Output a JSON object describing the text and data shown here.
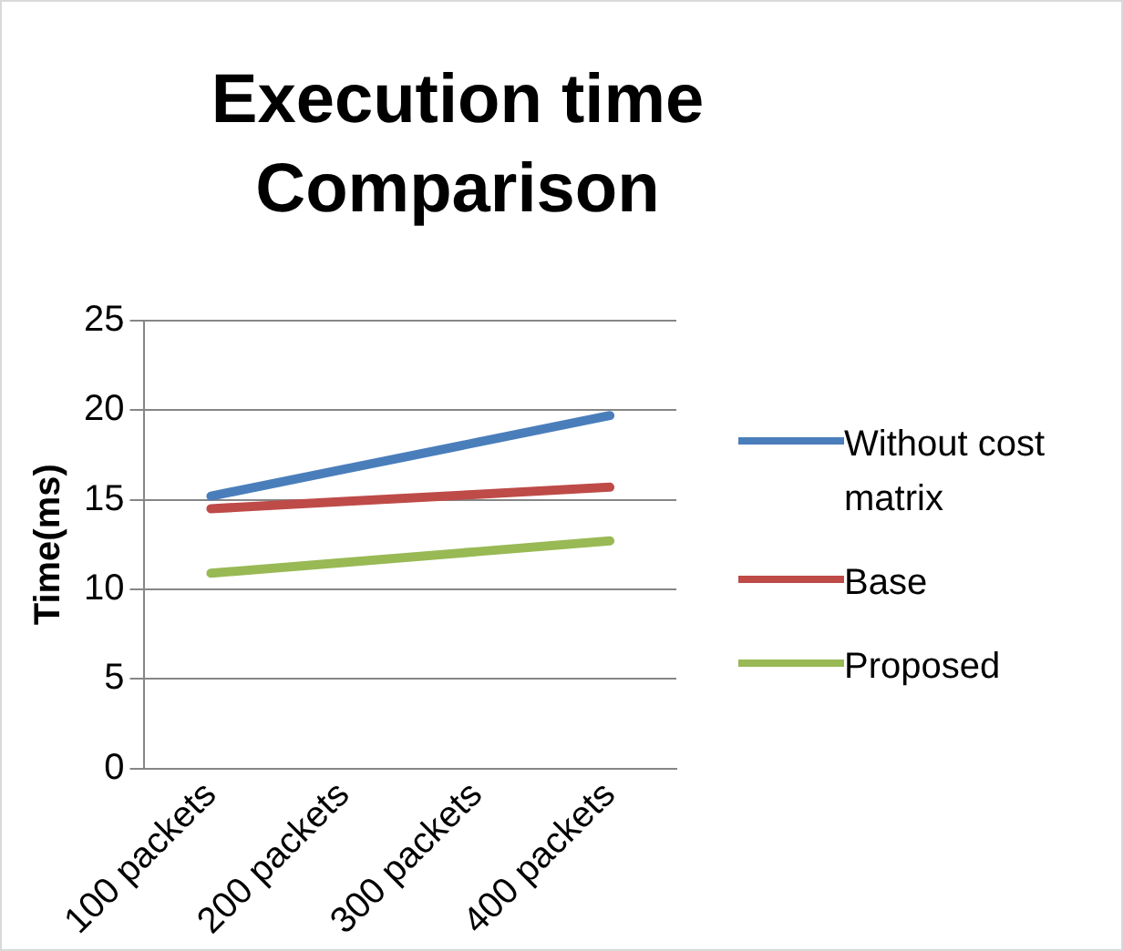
{
  "chart_data": {
    "type": "line",
    "title": "Execution time Comparison",
    "ylabel": "Time(ms)",
    "categories": [
      "100 packets",
      "200 packets",
      "300 packets",
      "400 packets"
    ],
    "series": [
      {
        "name": "Without cost matrix",
        "color": "#4a7ebb",
        "values": [
          15.2,
          16.7,
          18.2,
          19.7
        ]
      },
      {
        "name": "Base",
        "color": "#be4b48",
        "values": [
          14.5,
          14.9,
          15.3,
          15.7
        ]
      },
      {
        "name": "Proposed",
        "color": "#98b954",
        "values": [
          10.9,
          11.5,
          12.1,
          12.7
        ]
      }
    ],
    "ylim": [
      0,
      25
    ],
    "yticks": [
      0,
      5,
      10,
      15,
      20,
      25
    ],
    "grid": "y",
    "legend": "right",
    "marker": "none"
  }
}
